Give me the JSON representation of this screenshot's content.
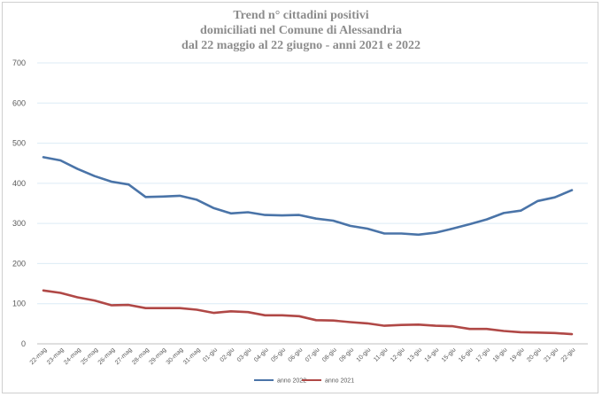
{
  "chart_data": {
    "type": "line",
    "title_lines": [
      "Trend n° cittadini positivi",
      "domiciliati nel Comune di Alessandria",
      "dal 22 maggio al 22 giugno - anni 2021 e 2022"
    ],
    "categories": [
      "22-mag",
      "23-mag",
      "24-mag",
      "25-mag",
      "26-mag",
      "27-mag",
      "28-mag",
      "29-mag",
      "30-mag",
      "31-mag",
      "01-giu",
      "02-giu",
      "03-giu",
      "04-giu",
      "05-giu",
      "06-giu",
      "07-giu",
      "08-giu",
      "09-giu",
      "10-giu",
      "11-giu",
      "12-giu",
      "13-giu",
      "14-giu",
      "15-giu",
      "16-giu",
      "17-giu",
      "18-giu",
      "19-giu",
      "20-giu",
      "21-giu",
      "22-giu"
    ],
    "y_ticks": [
      "0",
      "100",
      "200",
      "300",
      "400",
      "500",
      "600",
      "700"
    ],
    "ylim": [
      0,
      700
    ],
    "grid": true,
    "legend_position": "bottom",
    "series": [
      {
        "name": "anno 2022",
        "color": "#4a74a8",
        "values": [
          465,
          457,
          436,
          418,
          404,
          397,
          366,
          367,
          369,
          359,
          338,
          325,
          328,
          321,
          320,
          321,
          312,
          307,
          294,
          287,
          275,
          275,
          272,
          277,
          287,
          298,
          310,
          326,
          332,
          356,
          365,
          383
        ]
      },
      {
        "name": "anno 2021",
        "color": "#b04846",
        "values": [
          133,
          127,
          116,
          108,
          96,
          97,
          89,
          89,
          89,
          85,
          77,
          81,
          79,
          71,
          71,
          69,
          59,
          58,
          54,
          51,
          45,
          47,
          48,
          45,
          44,
          37,
          37,
          32,
          29,
          28,
          27,
          24
        ]
      }
    ]
  }
}
